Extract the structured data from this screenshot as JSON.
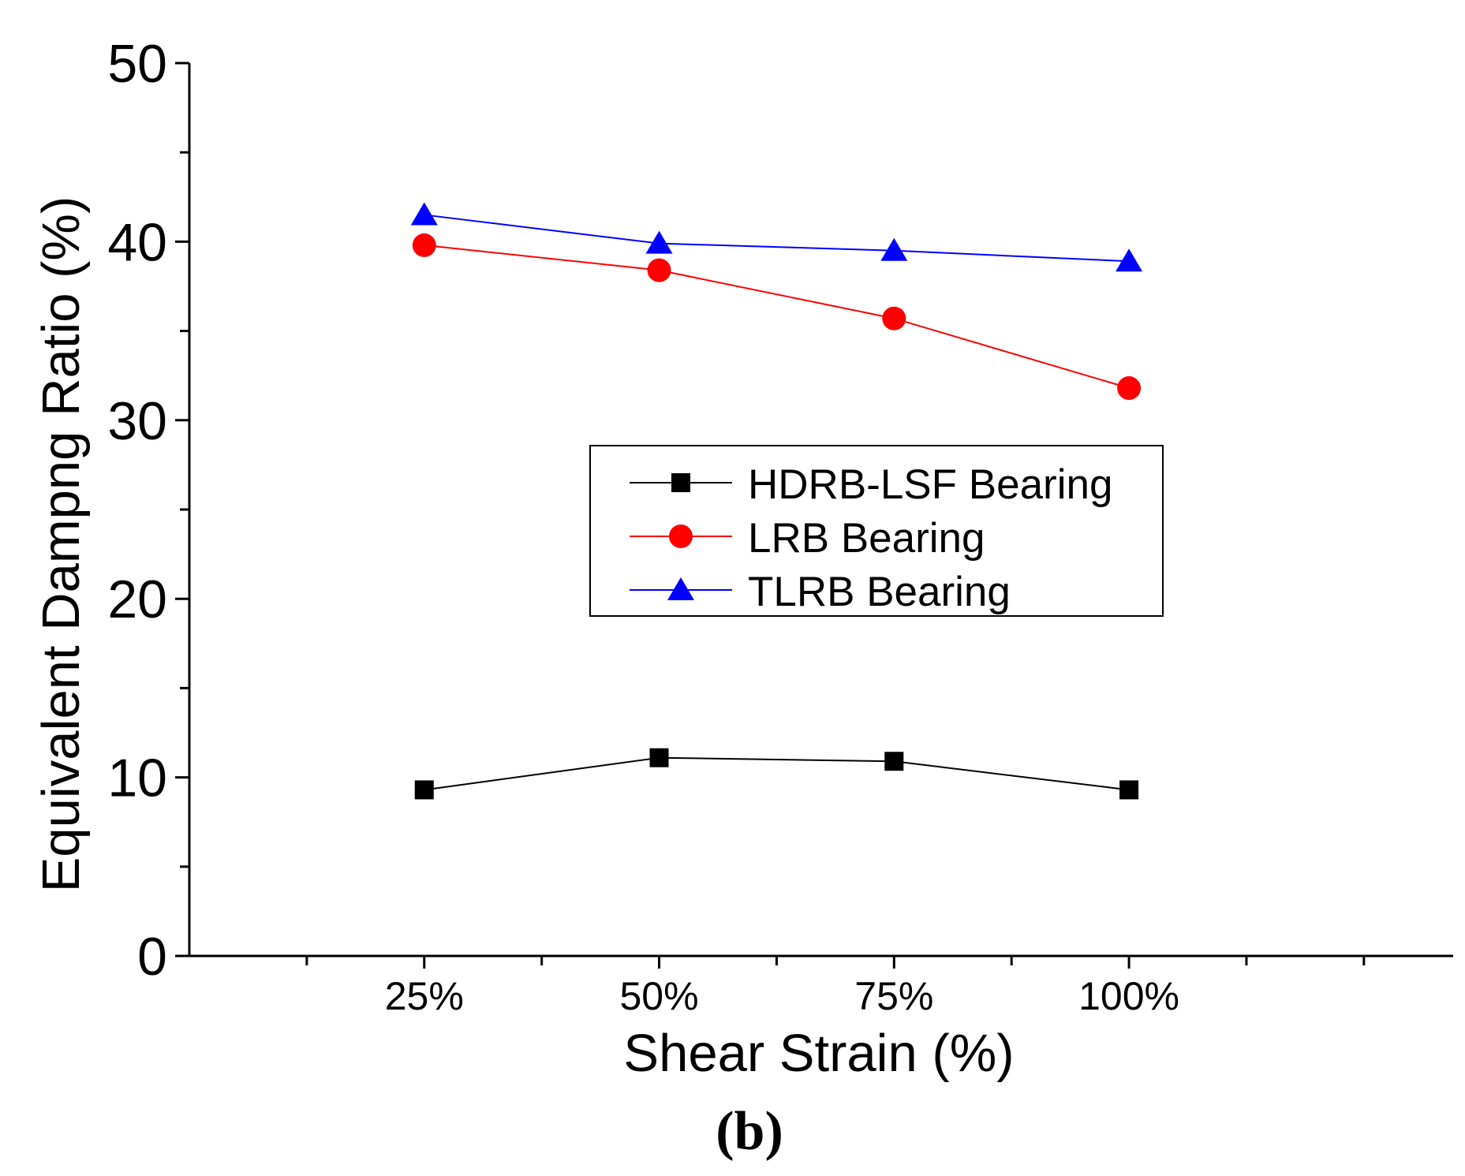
{
  "chart_data": {
    "type": "line",
    "panel_label": "(b)",
    "xlabel": "Shear Strain (%)",
    "ylabel": "Equivalent Dampng Ratio (%)",
    "categories": [
      "25%",
      "50%",
      "75%",
      "100%"
    ],
    "ylim": [
      0,
      50
    ],
    "y_ticks": [
      0,
      10,
      20,
      30,
      40,
      50
    ],
    "grid": false,
    "legend_position": "center",
    "series": [
      {
        "name": "HDRB-LSF Bearing",
        "marker": "square",
        "color": "#000000",
        "values": [
          9.3,
          11.1,
          10.9,
          9.3
        ]
      },
      {
        "name": "LRB Bearing",
        "marker": "circle",
        "color": "#ff0000",
        "values": [
          39.8,
          38.4,
          35.7,
          31.8
        ]
      },
      {
        "name": "TLRB Bearing",
        "marker": "triangle",
        "color": "#0000ff",
        "values": [
          41.5,
          39.9,
          39.5,
          38.9
        ]
      }
    ]
  }
}
